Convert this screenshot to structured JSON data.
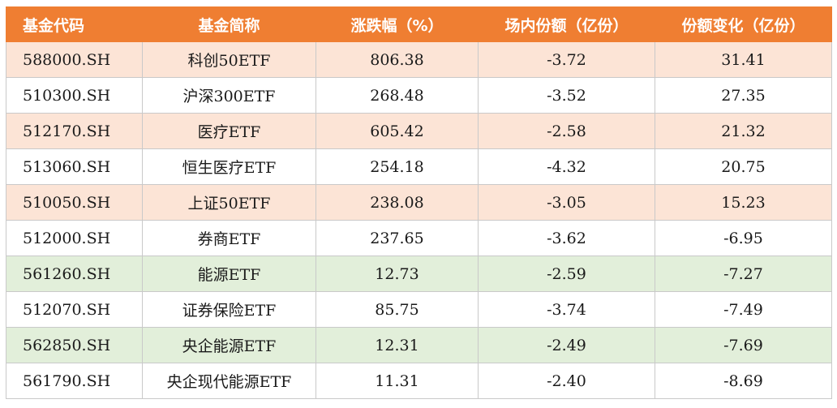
{
  "colors": {
    "header_bg": "#ef7e32",
    "header_text": "#ffffff",
    "row_orange": "#fce4d6",
    "row_green": "#e2efda",
    "row_white": "#ffffff"
  },
  "table": {
    "headers": [
      "基金代码",
      "基金简称",
      "涨跌幅（%）",
      "场内份额（亿份）",
      "份额变化（亿份）"
    ],
    "rows": [
      {
        "tone": "orange",
        "cells": [
          "588000.SH",
          "科创50ETF",
          "806.38",
          "-3.72",
          "31.41"
        ]
      },
      {
        "tone": "white",
        "cells": [
          "510300.SH",
          "沪深300ETF",
          "268.48",
          "-3.52",
          "27.35"
        ]
      },
      {
        "tone": "orange",
        "cells": [
          "512170.SH",
          "医疗ETF",
          "605.42",
          "-2.58",
          "21.32"
        ]
      },
      {
        "tone": "white",
        "cells": [
          "513060.SH",
          "恒生医疗ETF",
          "254.18",
          "-4.32",
          "20.75"
        ]
      },
      {
        "tone": "orange",
        "cells": [
          "510050.SH",
          "上证50ETF",
          "238.08",
          "-3.05",
          "15.23"
        ]
      },
      {
        "tone": "white",
        "cells": [
          "512000.SH",
          "券商ETF",
          "237.65",
          "-3.62",
          "-6.95"
        ]
      },
      {
        "tone": "green",
        "cells": [
          "561260.SH",
          "能源ETF",
          "12.73",
          "-2.59",
          "-7.27"
        ]
      },
      {
        "tone": "white",
        "cells": [
          "512070.SH",
          "证券保险ETF",
          "85.75",
          "-3.74",
          "-7.49"
        ]
      },
      {
        "tone": "green",
        "cells": [
          "562850.SH",
          "央企能源ETF",
          "12.31",
          "-2.49",
          "-7.69"
        ]
      },
      {
        "tone": "white",
        "cells": [
          "561790.SH",
          "央企现代能源ETF",
          "11.31",
          "-2.40",
          "-8.69"
        ]
      }
    ]
  }
}
